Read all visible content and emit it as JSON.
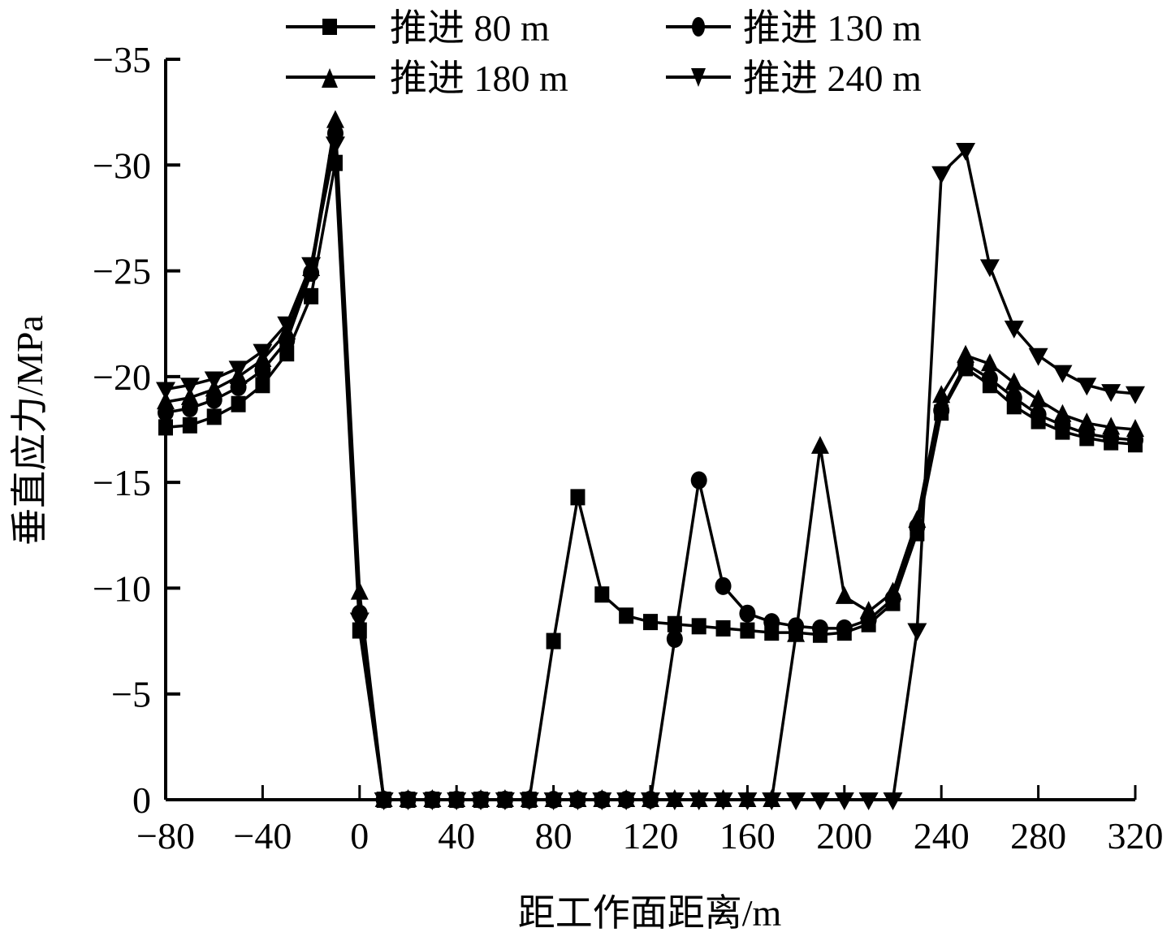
{
  "chart_data": {
    "type": "line",
    "title": "",
    "xlabel": "距工作面距离/m",
    "ylabel": "垂直应力/MPa",
    "xlim": [
      -80,
      320
    ],
    "ylim": [
      0,
      -35
    ],
    "y_inverted": true,
    "grid": false,
    "legend_position": "top",
    "x_ticks": [
      -80,
      -40,
      0,
      40,
      80,
      120,
      160,
      200,
      240,
      280,
      320
    ],
    "y_ticks": [
      0,
      -5,
      -10,
      -15,
      -20,
      -25,
      -30,
      -35
    ],
    "x_tick_labels": [
      "−80",
      "−40",
      "0",
      "40",
      "80",
      "120",
      "160",
      "200",
      "240",
      "280",
      "320"
    ],
    "y_tick_labels": [
      "0",
      "−5",
      "−10",
      "−15",
      "−20",
      "−25",
      "−30",
      "−35"
    ],
    "x": [
      -80,
      -70,
      -60,
      -50,
      -40,
      -30,
      -20,
      -10,
      0,
      10,
      20,
      30,
      40,
      50,
      60,
      70,
      80,
      90,
      100,
      110,
      120,
      130,
      140,
      150,
      160,
      170,
      180,
      190,
      200,
      210,
      220,
      230,
      240,
      250,
      260,
      270,
      280,
      290,
      300,
      310,
      320
    ],
    "series": [
      {
        "name": "推进 80 m",
        "marker": "square",
        "values": [
          -17.6,
          -17.7,
          -18.1,
          -18.7,
          -19.6,
          -21.1,
          -23.8,
          -30.1,
          -8.0,
          0,
          0,
          0,
          0,
          0,
          0,
          0,
          -7.5,
          -14.3,
          -9.7,
          -8.7,
          -8.4,
          -8.3,
          -8.2,
          -8.1,
          -8.0,
          -7.9,
          -7.9,
          -7.8,
          -7.9,
          -8.3,
          -9.3,
          -12.6,
          -18.3,
          -20.4,
          -19.6,
          -18.6,
          -17.9,
          -17.4,
          -17.1,
          -16.9,
          -16.8
        ]
      },
      {
        "name": "推进 130 m",
        "marker": "circle",
        "values": [
          -18.3,
          -18.5,
          -18.9,
          -19.5,
          -20.3,
          -21.7,
          -24.9,
          -31.5,
          -8.8,
          0,
          0,
          0,
          0,
          0,
          0,
          0,
          0,
          0,
          0,
          0,
          0,
          -7.6,
          -15.1,
          -10.1,
          -8.8,
          -8.4,
          -8.2,
          -8.1,
          -8.1,
          -8.5,
          -9.5,
          -12.9,
          -18.4,
          -20.6,
          -19.9,
          -19.0,
          -18.2,
          -17.7,
          -17.3,
          -17.1,
          -17.0
        ]
      },
      {
        "name": "推进 180 m",
        "marker": "triangle-up",
        "values": [
          -18.8,
          -19.0,
          -19.4,
          -20.0,
          -20.8,
          -22.1,
          -25.1,
          -32.1,
          -9.8,
          0,
          0,
          0,
          0,
          0,
          0,
          0,
          0,
          0,
          0,
          0,
          0,
          0,
          0,
          0,
          0,
          0,
          -7.8,
          -16.7,
          -9.6,
          -8.9,
          -9.8,
          -13.2,
          -19.1,
          -21.0,
          -20.6,
          -19.7,
          -18.9,
          -18.2,
          -17.8,
          -17.6,
          -17.5
        ]
      },
      {
        "name": "推进 240 m",
        "marker": "triangle-down",
        "values": [
          -19.4,
          -19.6,
          -19.9,
          -20.4,
          -21.2,
          -22.5,
          -25.3,
          -31.0,
          -8.5,
          0,
          0,
          0,
          0,
          0,
          0,
          0,
          0,
          0,
          0,
          0,
          0,
          0,
          0,
          0,
          0,
          0,
          0,
          0,
          0,
          0,
          0,
          -8.0,
          -29.6,
          -30.7,
          -25.2,
          -22.3,
          -21.0,
          -20.2,
          -19.6,
          -19.3,
          -19.2
        ]
      }
    ]
  },
  "legend": {
    "items": [
      {
        "label": "推进 80 m"
      },
      {
        "label": "推进 130 m"
      },
      {
        "label": "推进 180 m"
      },
      {
        "label": "推进 240 m"
      }
    ]
  },
  "axes": {
    "xlabel": "距工作面距离/m",
    "ylabel": "垂直应力/MPa"
  },
  "colors": {
    "line": "#000000",
    "background": "#ffffff"
  }
}
